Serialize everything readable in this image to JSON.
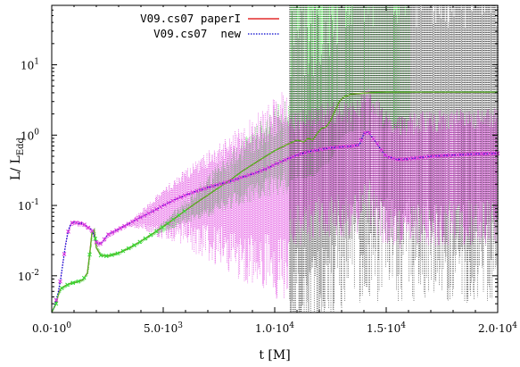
{
  "chart_data": {
    "type": "line",
    "title": "",
    "xlabel": "t [M]",
    "ylabel": "L/ L_Edd",
    "ylabel_main": "L/ L",
    "ylabel_sub": "Edd",
    "xlim": [
      0,
      20000
    ],
    "ylim": [
      0.003,
      70
    ],
    "yscale": "log",
    "grid": false,
    "legend_position": "top-left",
    "x_ticks": [
      {
        "value": 0,
        "label": "0.0·10",
        "exp": "0"
      },
      {
        "value": 5000,
        "label": "5.0·10",
        "exp": "3"
      },
      {
        "value": 10000,
        "label": "1.0·10",
        "exp": "4"
      },
      {
        "value": 15000,
        "label": "1.5·10",
        "exp": "4"
      },
      {
        "value": 20000,
        "label": "2.0·10",
        "exp": "4"
      }
    ],
    "y_ticks": [
      {
        "value": 0.01,
        "label": "10",
        "exp": "-2"
      },
      {
        "value": 0.1,
        "label": "10",
        "exp": "-1"
      },
      {
        "value": 1,
        "label": "10",
        "exp": "0"
      },
      {
        "value": 10,
        "label": "10",
        "exp": "1"
      }
    ],
    "series": [
      {
        "name": "V09.cs07 paperI",
        "color": "#dd0000",
        "style": "solid",
        "x": [
          0,
          100,
          200,
          300,
          400,
          600,
          800,
          1000,
          1200,
          1400,
          1600,
          1700,
          1800,
          1900,
          2000,
          2200,
          2500,
          3000,
          3500,
          4000,
          4500,
          5000,
          5500,
          6000,
          6500,
          7000,
          7500,
          8000,
          8500,
          9000,
          9500,
          10000,
          10500,
          11000,
          11300,
          11500,
          11700,
          11900,
          12100,
          12300,
          12500,
          12700,
          12900,
          13100,
          13300,
          13500,
          14000,
          14500,
          15000,
          16000,
          17000,
          18000,
          19000,
          20000
        ],
        "y": [
          0.003,
          0.0035,
          0.004,
          0.0055,
          0.0065,
          0.0072,
          0.0077,
          0.008,
          0.0083,
          0.0088,
          0.011,
          0.02,
          0.04,
          0.045,
          0.025,
          0.0195,
          0.019,
          0.021,
          0.025,
          0.031,
          0.039,
          0.05,
          0.065,
          0.085,
          0.11,
          0.14,
          0.18,
          0.23,
          0.3,
          0.38,
          0.48,
          0.6,
          0.72,
          0.85,
          0.8,
          0.9,
          0.85,
          1.05,
          1.25,
          1.3,
          1.6,
          2.2,
          3.0,
          3.5,
          3.7,
          3.85,
          3.95,
          4.05,
          4.1,
          4.1,
          4.1,
          4.1,
          4.1,
          4.1
        ]
      },
      {
        "name": "V09.cs07  new",
        "color": "#0000cc",
        "style": "dotted",
        "x": [
          0,
          100,
          200,
          300,
          400,
          500,
          600,
          700,
          800,
          900,
          1000,
          1100,
          1200,
          1300,
          1400,
          1500,
          1600,
          1700,
          1800,
          1900,
          2000,
          2100,
          2200,
          2300,
          2500,
          3000,
          3500,
          4000,
          4500,
          5000,
          5500,
          6000,
          6500,
          7000,
          7500,
          8000,
          8500,
          9000,
          9500,
          10000,
          10500,
          11000,
          11500,
          12000,
          12500,
          13000,
          13500,
          13800,
          14000,
          14200,
          14400,
          14600,
          14800,
          15000,
          15500,
          16000,
          17000,
          18000,
          19000,
          20000
        ],
        "y": [
          0.003,
          0.0035,
          0.0045,
          0.006,
          0.009,
          0.015,
          0.025,
          0.038,
          0.05,
          0.056,
          0.058,
          0.057,
          0.055,
          0.056,
          0.055,
          0.052,
          0.049,
          0.047,
          0.045,
          0.037,
          0.03,
          0.028,
          0.029,
          0.031,
          0.038,
          0.046,
          0.056,
          0.068,
          0.082,
          0.1,
          0.12,
          0.14,
          0.16,
          0.18,
          0.2,
          0.22,
          0.25,
          0.28,
          0.32,
          0.38,
          0.45,
          0.52,
          0.58,
          0.62,
          0.66,
          0.68,
          0.7,
          0.73,
          1.05,
          1.12,
          0.9,
          0.75,
          0.6,
          0.5,
          0.45,
          0.46,
          0.5,
          0.52,
          0.54,
          0.55
        ]
      }
    ]
  },
  "legend": {
    "entries": [
      {
        "label": "V09.cs07 paperI",
        "color": "#dd0000",
        "style": "solid"
      },
      {
        "label": "V09.cs07  new",
        "color": "#0000cc",
        "style": "dotted"
      }
    ]
  },
  "errorbar_colors": {
    "green": "#33dd33",
    "magenta": "#dd33dd",
    "black": "#444444"
  }
}
